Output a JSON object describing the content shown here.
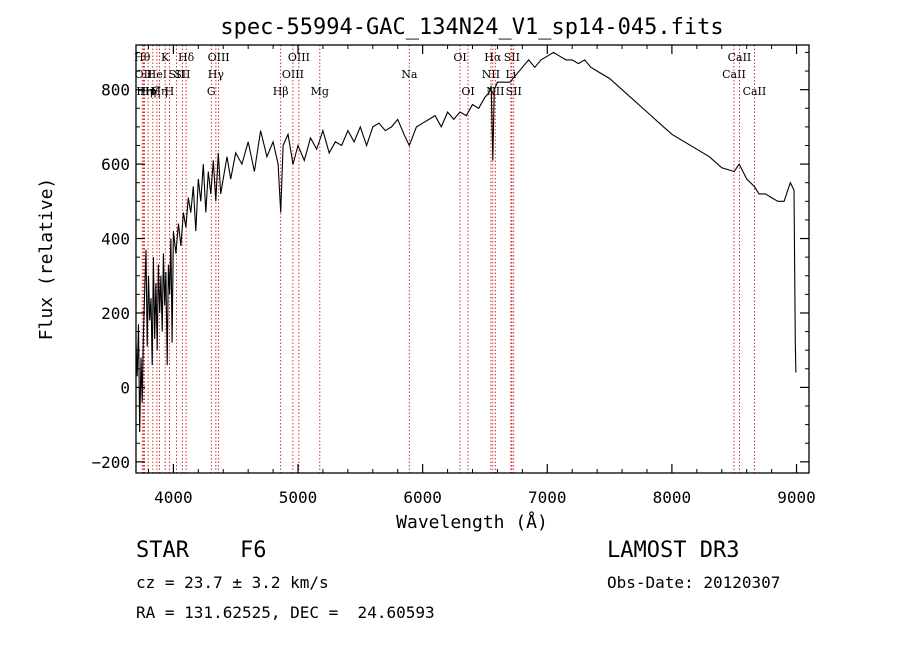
{
  "chart_data": {
    "type": "line",
    "title": "spec-55994-GAC_134N24_V1_sp14-045.fits",
    "xlabel": "Wavelength (Å)",
    "ylabel": "Flux (relative)",
    "xlim": [
      3700,
      9100
    ],
    "ylim": [
      -230,
      920
    ],
    "x_ticks": [
      4000,
      5000,
      6000,
      7000,
      8000,
      9000
    ],
    "x_tick_labels": [
      "4000",
      "5000",
      "6000",
      "7000",
      "8000",
      "9000"
    ],
    "y_ticks": [
      -200,
      0,
      200,
      400,
      600,
      800
    ],
    "y_tick_labels": [
      "−200",
      "0",
      "200",
      "400",
      "600",
      "800"
    ],
    "series": [
      {
        "name": "spectrum",
        "x": [
          3700,
          3710,
          3720,
          3730,
          3740,
          3750,
          3760,
          3770,
          3780,
          3790,
          3800,
          3810,
          3820,
          3830,
          3840,
          3850,
          3860,
          3870,
          3880,
          3890,
          3900,
          3910,
          3920,
          3930,
          3940,
          3950,
          3960,
          3970,
          3980,
          3990,
          4000,
          4020,
          4040,
          4060,
          4080,
          4100,
          4120,
          4140,
          4160,
          4180,
          4200,
          4220,
          4240,
          4260,
          4280,
          4300,
          4320,
          4340,
          4360,
          4380,
          4400,
          4430,
          4460,
          4500,
          4550,
          4600,
          4650,
          4700,
          4750,
          4800,
          4840,
          4861,
          4880,
          4920,
          4960,
          5000,
          5050,
          5100,
          5150,
          5200,
          5250,
          5300,
          5350,
          5400,
          5450,
          5500,
          5550,
          5600,
          5650,
          5700,
          5750,
          5800,
          5850,
          5893,
          5950,
          6000,
          6050,
          6100,
          6150,
          6200,
          6250,
          6300,
          6350,
          6400,
          6450,
          6500,
          6530,
          6550,
          6563,
          6575,
          6600,
          6650,
          6700,
          6750,
          6800,
          6850,
          6900,
          6950,
          7000,
          7050,
          7100,
          7150,
          7200,
          7250,
          7300,
          7350,
          7400,
          7500,
          7600,
          7700,
          7800,
          7900,
          8000,
          8100,
          8200,
          8300,
          8400,
          8500,
          8540,
          8600,
          8660,
          8700,
          8750,
          8800,
          8850,
          8900,
          8950,
          8980,
          8990,
          8995
        ],
        "y": [
          120,
          30,
          170,
          -120,
          80,
          -40,
          150,
          260,
          370,
          110,
          300,
          180,
          240,
          60,
          350,
          130,
          280,
          100,
          330,
          200,
          300,
          150,
          360,
          220,
          310,
          60,
          330,
          250,
          400,
          120,
          420,
          360,
          440,
          380,
          470,
          430,
          510,
          470,
          540,
          420,
          560,
          500,
          600,
          470,
          580,
          520,
          610,
          500,
          630,
          520,
          560,
          620,
          560,
          630,
          600,
          660,
          580,
          690,
          620,
          660,
          600,
          470,
          650,
          680,
          600,
          650,
          610,
          670,
          640,
          690,
          630,
          660,
          650,
          690,
          660,
          700,
          650,
          700,
          710,
          690,
          700,
          720,
          680,
          650,
          700,
          710,
          720,
          730,
          700,
          740,
          720,
          740,
          730,
          760,
          750,
          780,
          790,
          810,
          610,
          800,
          820,
          820,
          820,
          840,
          860,
          880,
          860,
          880,
          890,
          900,
          890,
          880,
          880,
          870,
          880,
          860,
          850,
          830,
          800,
          770,
          740,
          710,
          680,
          660,
          640,
          620,
          590,
          580,
          600,
          560,
          540,
          520,
          520,
          510,
          500,
          500,
          550,
          530,
          120,
          40
        ]
      }
    ],
    "line_markers": [
      {
        "wl": 3750,
        "label": "Hθ",
        "row": 1
      },
      {
        "wl": 3760,
        "label": "OII",
        "row": 2
      },
      {
        "wl": 3768,
        "label": "Hη",
        "row": 3
      },
      {
        "wl": 3797,
        "label": "Hη",
        "row": 3
      },
      {
        "wl": 3835,
        "label": "Hζ",
        "row": 3
      },
      {
        "wl": 3868,
        "label": "HeI",
        "row": 2
      },
      {
        "wl": 3889,
        "label": "Hη",
        "row": 3
      },
      {
        "wl": 3934,
        "label": "K",
        "row": 1
      },
      {
        "wl": 3968,
        "label": "H",
        "row": 3
      },
      {
        "wl": 4026,
        "label": "SII",
        "row": 2
      },
      {
        "wl": 4072,
        "label": "SII",
        "row": 2
      },
      {
        "wl": 4102,
        "label": "Hδ",
        "row": 1
      },
      {
        "wl": 4304,
        "label": "G",
        "row": 3
      },
      {
        "wl": 4341,
        "label": "Hγ",
        "row": 2
      },
      {
        "wl": 4363,
        "label": "OIII",
        "row": 1
      },
      {
        "wl": 4861,
        "label": "Hβ",
        "row": 3
      },
      {
        "wl": 4959,
        "label": "OIII",
        "row": 2
      },
      {
        "wl": 5007,
        "label": "OIII",
        "row": 1
      },
      {
        "wl": 5175,
        "label": "Mg",
        "row": 3
      },
      {
        "wl": 5893,
        "label": "Na",
        "row": 2
      },
      {
        "wl": 6300,
        "label": "OI",
        "row": 1
      },
      {
        "wl": 6364,
        "label": "OI",
        "row": 3
      },
      {
        "wl": 6548,
        "label": "NII",
        "row": 2
      },
      {
        "wl": 6563,
        "label": "Hα",
        "row": 1
      },
      {
        "wl": 6583,
        "label": "NII",
        "row": 3
      },
      {
        "wl": 6708,
        "label": "Li",
        "row": 2
      },
      {
        "wl": 6716,
        "label": "SII",
        "row": 1
      },
      {
        "wl": 6731,
        "label": "SII",
        "row": 3
      },
      {
        "wl": 8498,
        "label": "CaII",
        "row": 2
      },
      {
        "wl": 8542,
        "label": "CaII",
        "row": 1
      },
      {
        "wl": 8662,
        "label": "CaII",
        "row": 3
      }
    ]
  },
  "info": {
    "object_class": "STAR",
    "subclass": "F6",
    "survey": "LAMOST DR3",
    "redshift": "cz = 23.7 ± 3.2 km/s",
    "obs_date": "Obs-Date: 20120307",
    "coords": "RA = 131.62525, DEC =  24.60593"
  },
  "colors": {
    "spectrum": "#000000",
    "marker_line": "#cc0000",
    "axis": "#000000"
  }
}
